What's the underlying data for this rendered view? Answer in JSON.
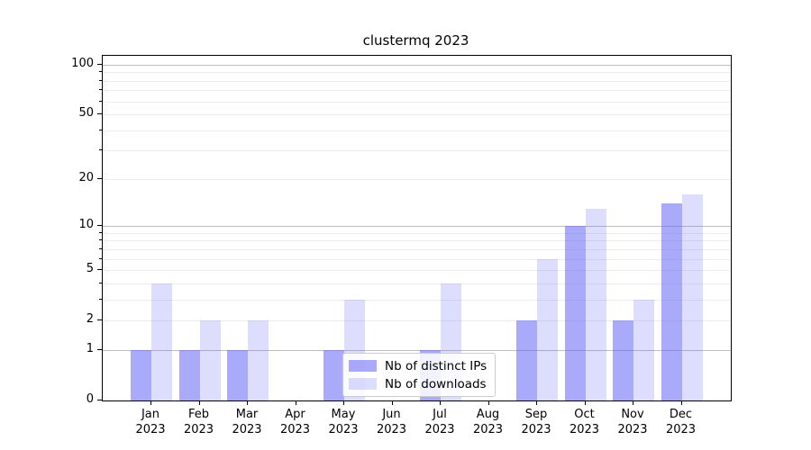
{
  "title": "clustermq 2023",
  "colors": {
    "bar_dark": "rgba(100,100,245,0.55)",
    "bar_light": "rgba(100,100,245,0.22)",
    "grid_major": "#bdbdbd",
    "grid_minor": "#ececec",
    "text": "#000000"
  },
  "legend": {
    "items": [
      {
        "label": "Nb of distinct IPs",
        "color": "rgba(100,100,245,0.55)"
      },
      {
        "label": "Nb of downloads",
        "color": "rgba(100,100,245,0.22)"
      }
    ]
  },
  "y_axis": {
    "tick_labels": [
      "0",
      "1",
      "2",
      "5",
      "10",
      "20",
      "50",
      "100"
    ]
  },
  "chart_data": {
    "type": "bar",
    "title": "clustermq 2023",
    "categories": [
      "Jan 2023",
      "Feb 2023",
      "Mar 2023",
      "Apr 2023",
      "May 2023",
      "Jun 2023",
      "Jul 2023",
      "Aug 2023",
      "Sep 2023",
      "Oct 2023",
      "Nov 2023",
      "Dec 2023"
    ],
    "series": [
      {
        "name": "Nb of distinct IPs",
        "values": [
          1,
          1,
          1,
          0,
          1,
          0,
          1,
          0,
          2,
          10,
          2,
          14
        ]
      },
      {
        "name": "Nb of downloads",
        "values": [
          4,
          2,
          2,
          0,
          3,
          0,
          4,
          0,
          6,
          13,
          3,
          16
        ]
      }
    ],
    "yscale": "log1p",
    "ylim": [
      0,
      112
    ],
    "yticks": [
      0,
      1,
      2,
      5,
      10,
      20,
      50,
      100
    ],
    "yticks_minor": [
      3,
      4,
      6,
      7,
      8,
      9,
      30,
      40,
      60,
      70,
      80,
      90
    ],
    "grid": "horizontal",
    "legend_position": "lower center"
  }
}
